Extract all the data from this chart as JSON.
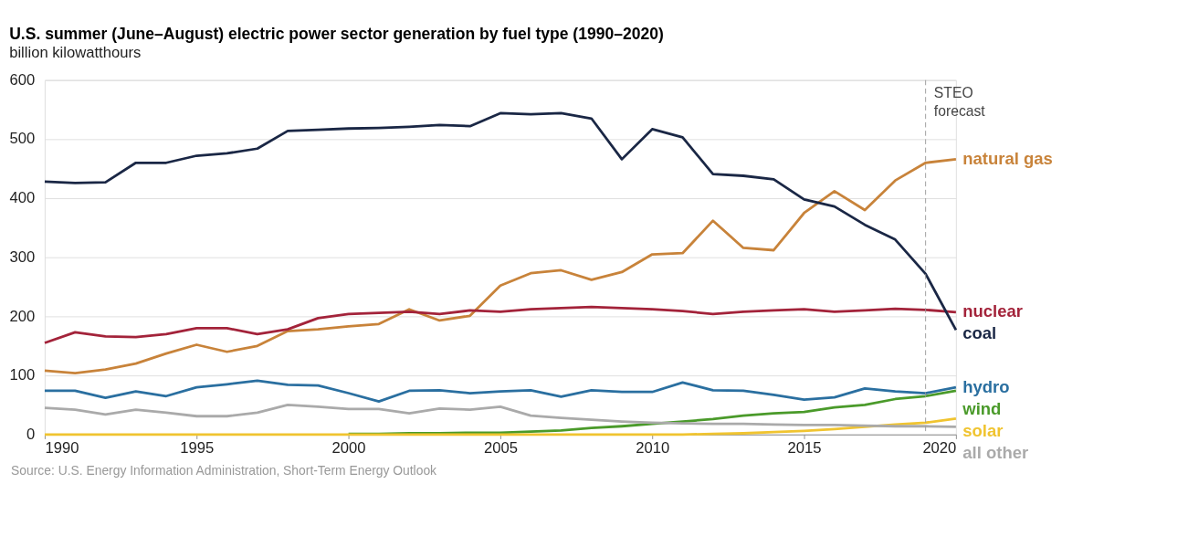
{
  "chart_data": {
    "type": "line",
    "title": "U.S. summer (June–August) electric power sector generation by fuel type (1990–2020)",
    "subtitle": "billion kilowatthours",
    "x": [
      1990,
      1991,
      1992,
      1993,
      1994,
      1995,
      1996,
      1997,
      1998,
      1999,
      2000,
      2001,
      2002,
      2003,
      2004,
      2005,
      2006,
      2007,
      2008,
      2009,
      2010,
      2011,
      2012,
      2013,
      2014,
      2015,
      2016,
      2017,
      2018,
      2019,
      2020
    ],
    "series": [
      {
        "name": "natural gas",
        "color": "#c8833a",
        "values": [
          108,
          104,
          110,
          120,
          137,
          152,
          140,
          150,
          175,
          178,
          183,
          187,
          212,
          193,
          201,
          252,
          273,
          278,
          262,
          275,
          305,
          307,
          362,
          316,
          312,
          375,
          412,
          380,
          430,
          460,
          466
        ]
      },
      {
        "name": "nuclear",
        "color": "#a3233a",
        "values": [
          155,
          173,
          166,
          165,
          170,
          180,
          180,
          170,
          178,
          197,
          204,
          206,
          208,
          204,
          210,
          208,
          212,
          214,
          216,
          214,
          212,
          209,
          204,
          208,
          210,
          212,
          208,
          210,
          213,
          211,
          207
        ]
      },
      {
        "name": "coal",
        "color": "#1a2745",
        "values": [
          428,
          426,
          427,
          460,
          460,
          472,
          476,
          484,
          514,
          516,
          518,
          519,
          521,
          524,
          522,
          544,
          542,
          544,
          535,
          466,
          517,
          503,
          441,
          438,
          432,
          398,
          386,
          355,
          330,
          272,
          177
        ]
      },
      {
        "name": "hydro",
        "color": "#2a6fa0",
        "values": [
          74,
          74,
          62,
          73,
          65,
          80,
          85,
          91,
          84,
          83,
          70,
          56,
          74,
          75,
          70,
          73,
          75,
          64,
          75,
          72,
          72,
          88,
          75,
          74,
          67,
          59,
          63,
          78,
          73,
          70,
          80
        ]
      },
      {
        "name": "wind",
        "color": "#4a9a2a",
        "values": [
          null,
          null,
          null,
          null,
          null,
          null,
          null,
          null,
          null,
          null,
          1,
          1,
          2,
          2,
          3,
          3,
          5,
          7,
          11,
          14,
          18,
          22,
          26,
          32,
          36,
          38,
          46,
          50,
          60,
          65,
          74
        ]
      },
      {
        "name": "solar",
        "color": "#f0c430",
        "values": [
          0,
          0,
          0,
          0,
          0,
          0,
          0,
          0,
          0,
          0,
          0,
          0,
          0,
          0,
          0,
          0,
          0,
          0,
          0,
          0,
          0,
          0,
          1,
          2,
          4,
          6,
          9,
          13,
          17,
          20,
          27
        ]
      },
      {
        "name": "all other",
        "color": "#aaaaaa",
        "values": [
          45,
          42,
          34,
          42,
          37,
          31,
          31,
          37,
          50,
          47,
          43,
          43,
          36,
          44,
          42,
          47,
          32,
          28,
          25,
          22,
          20,
          19,
          18,
          18,
          17,
          16,
          16,
          15,
          14,
          14,
          13
        ]
      }
    ],
    "xlim": [
      1990,
      2020
    ],
    "xticks": [
      1990,
      1995,
      2000,
      2005,
      2010,
      2015,
      2020
    ],
    "ylim": [
      0,
      600
    ],
    "yticks": [
      0,
      100,
      200,
      300,
      400,
      500,
      600
    ],
    "grid": "y",
    "legend": false,
    "marker": "none",
    "line_style": "solid",
    "ref_lines": [
      {
        "axis": "x",
        "value": 2019,
        "label": "STEO forecast",
        "color": "#999999",
        "line_style": "dashed"
      }
    ],
    "annotations": [
      "Source: U.S. Energy Information Administration, Short-Term Energy Outlook"
    ]
  }
}
